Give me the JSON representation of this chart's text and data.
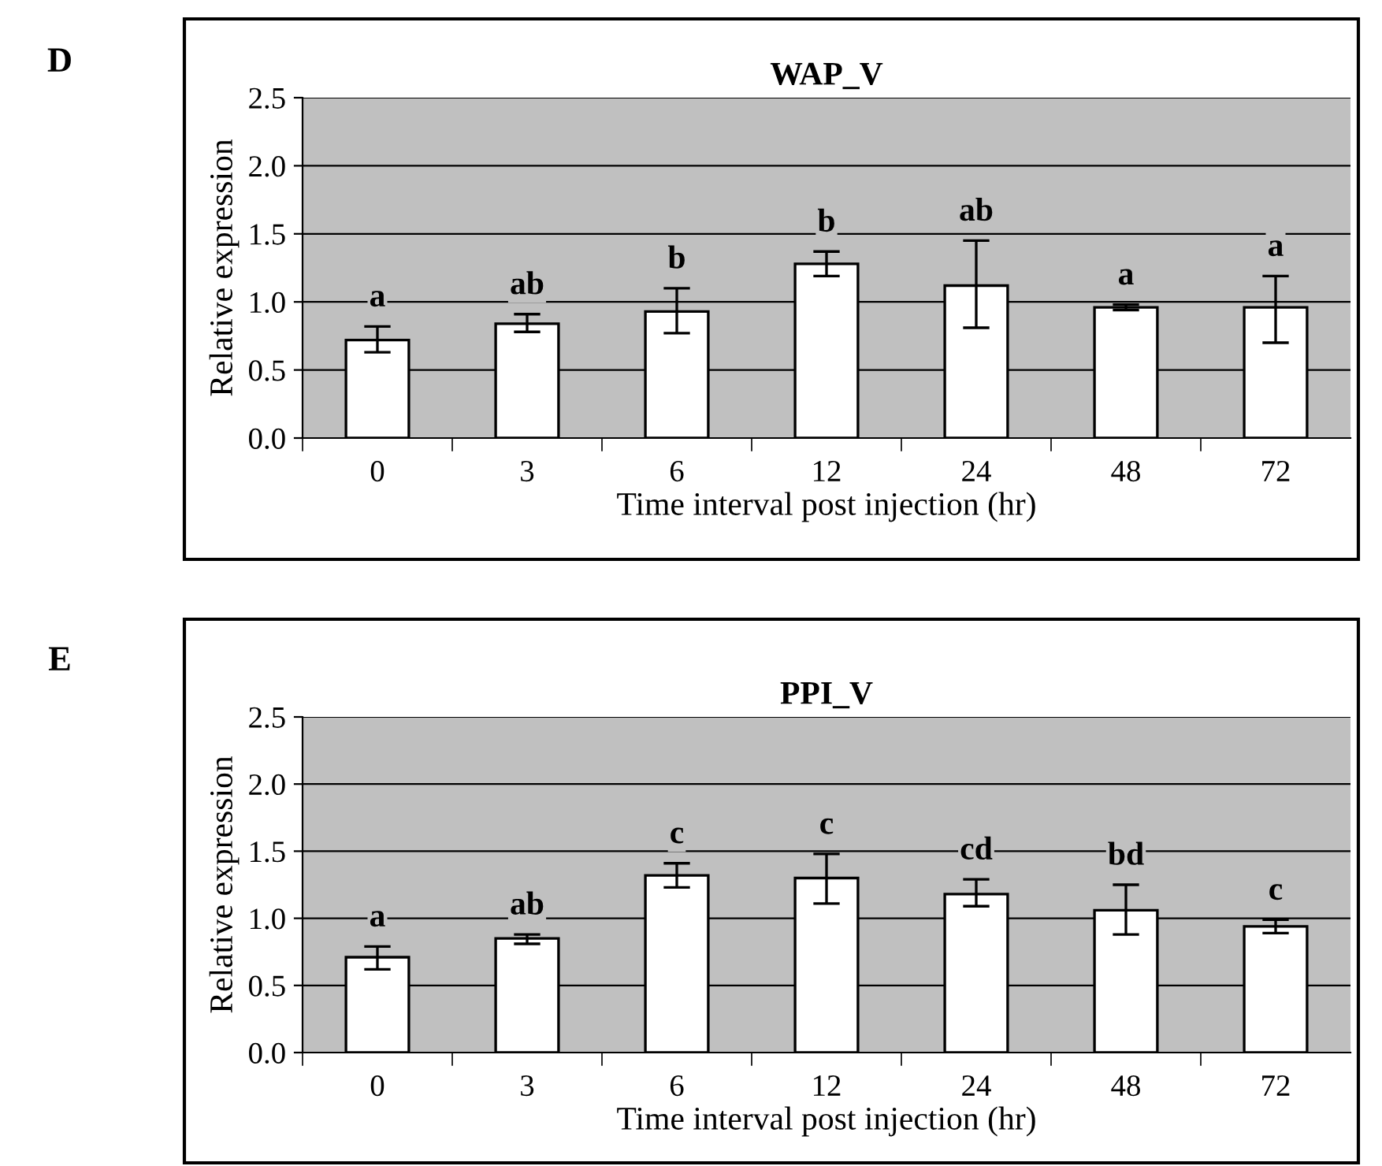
{
  "chart_data": [
    {
      "type": "bar",
      "title": "WAP_V",
      "xlabel": "Time interval post injection (hr)",
      "ylabel": "Relative expression",
      "categories": [
        "0",
        "3",
        "6",
        "12",
        "24",
        "48",
        "72"
      ],
      "values": [
        0.72,
        0.84,
        0.93,
        1.28,
        1.12,
        0.96,
        0.96
      ],
      "errors": [
        [
          0.63,
          0.82
        ],
        [
          0.78,
          0.91
        ],
        [
          0.77,
          1.1
        ],
        [
          1.19,
          1.37
        ],
        [
          0.81,
          1.45
        ],
        [
          0.94,
          0.98
        ],
        [
          0.7,
          1.19
        ]
      ],
      "color": "#ffffff",
      "ylim": [
        0,
        2.5
      ],
      "yticks": [
        {
          "value": 0,
          "label": "0.0"
        },
        {
          "value": 0.5,
          "label": "0.5"
        },
        {
          "value": 1.0,
          "label": "1.0"
        },
        {
          "value": 1.5,
          "label": "1.5"
        },
        {
          "value": 2.0,
          "label": "2.0"
        },
        {
          "value": 2.5,
          "label": "2.5"
        }
      ],
      "grid": "y",
      "annotations": [
        "D",
        {
          "text": "a",
          "x": "0",
          "y": 0.82
        },
        {
          "text": "ab",
          "x": "3",
          "y": 0.91
        },
        {
          "text": "b",
          "x": "6",
          "y": 1.1
        },
        {
          "text": "b",
          "x": "12",
          "y": 1.37
        },
        {
          "text": "ab",
          "x": "24",
          "y": 1.45
        },
        {
          "text": "a",
          "x": "48",
          "y": 0.98
        },
        {
          "text": "a",
          "x": "72",
          "y": 1.19
        }
      ]
    },
    {
      "type": "bar",
      "title": "PPI_V",
      "xlabel": "Time interval post injection (hr)",
      "ylabel": "Relative expression",
      "categories": [
        "0",
        "3",
        "6",
        "12",
        "24",
        "48",
        "72"
      ],
      "values": [
        0.71,
        0.85,
        1.32,
        1.3,
        1.18,
        1.06,
        0.94
      ],
      "errors": [
        [
          0.62,
          0.79
        ],
        [
          0.81,
          0.88
        ],
        [
          1.23,
          1.41
        ],
        [
          1.11,
          1.48
        ],
        [
          1.09,
          1.29
        ],
        [
          0.88,
          1.25
        ],
        [
          0.89,
          0.99
        ]
      ],
      "color": "#ffffff",
      "ylim": [
        0,
        2.5
      ],
      "yticks": [
        {
          "value": 0,
          "label": "0.0"
        },
        {
          "value": 0.5,
          "label": "0.5"
        },
        {
          "value": 1.0,
          "label": "1.0"
        },
        {
          "value": 1.5,
          "label": "1.5"
        },
        {
          "value": 2.0,
          "label": "2.0"
        },
        {
          "value": 2.5,
          "label": "2.5"
        }
      ],
      "grid": "y",
      "annotations": [
        "E",
        {
          "text": "a",
          "x": "0",
          "y": 0.79
        },
        {
          "text": "ab",
          "x": "3",
          "y": 0.88
        },
        {
          "text": "c",
          "x": "6",
          "y": 1.41
        },
        {
          "text": "c",
          "x": "12",
          "y": 1.48
        },
        {
          "text": "cd",
          "x": "24",
          "y": 1.29
        },
        {
          "text": "bd",
          "x": "48",
          "y": 1.25
        },
        {
          "text": "c",
          "x": "72",
          "y": 0.99
        }
      ]
    }
  ]
}
